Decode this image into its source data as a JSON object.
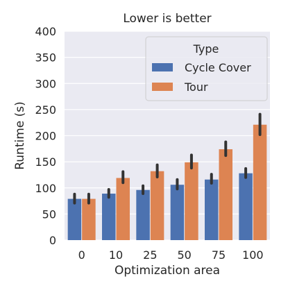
{
  "chart_data": {
    "type": "bar",
    "title": "Lower is better",
    "xlabel": "Optimization area",
    "ylabel": "Runtime (s)",
    "categories": [
      "0",
      "10",
      "25",
      "50",
      "75",
      "100"
    ],
    "ylim": [
      0,
      400
    ],
    "yticks": [
      "0",
      "50",
      "100",
      "150",
      "200",
      "250",
      "300",
      "350",
      "400"
    ],
    "grid": true,
    "legend": {
      "title": "Type",
      "placement": "top-right"
    },
    "series": [
      {
        "name": "Cycle Cover",
        "color": "#4c72b0",
        "values": [
          79,
          89,
          96,
          106,
          116,
          128
        ],
        "error_low": [
          71,
          82,
          89,
          98,
          109,
          120
        ],
        "error_high": [
          88,
          97,
          104,
          116,
          126,
          137
        ]
      },
      {
        "name": "Tour",
        "color": "#dd8452",
        "values": [
          79,
          119,
          132,
          149,
          174,
          221
        ],
        "error_low": [
          71,
          110,
          121,
          138,
          162,
          202
        ],
        "error_high": [
          88,
          131,
          144,
          163,
          188,
          241
        ]
      }
    ],
    "error_color": "#333333",
    "background": "#eaeaf2",
    "grid_color": "#ffffff"
  }
}
